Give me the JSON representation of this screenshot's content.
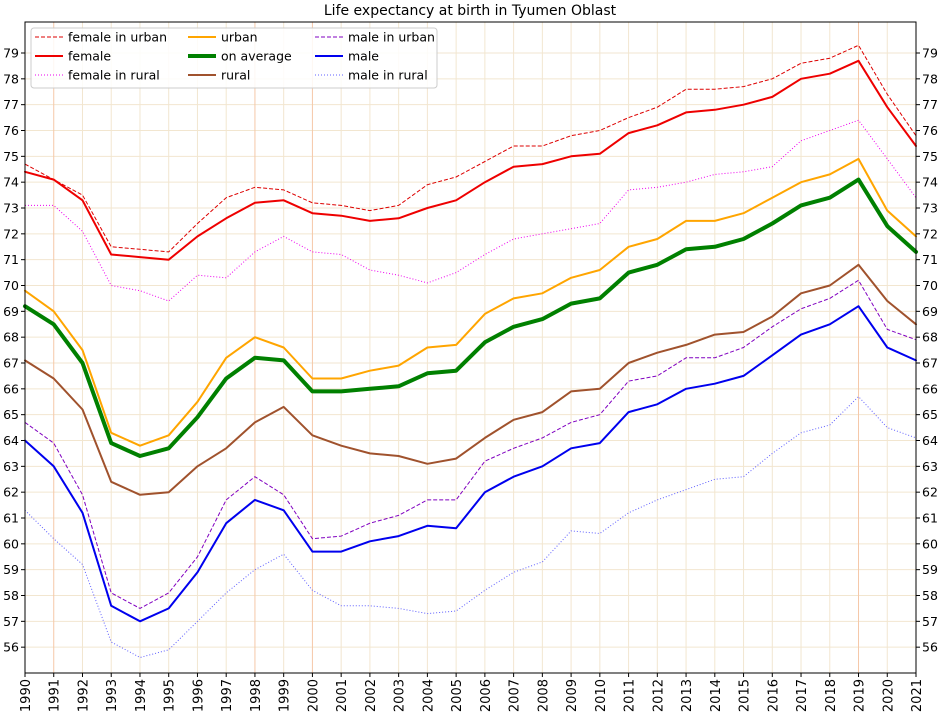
{
  "chart_data": {
    "type": "line",
    "title": "Life expectancy at birth in Tyumen Oblast",
    "xlabel": "",
    "ylabel": "",
    "x": [
      1990,
      1991,
      1992,
      1993,
      1994,
      1995,
      1996,
      1997,
      1998,
      1999,
      2000,
      2001,
      2002,
      2003,
      2004,
      2005,
      2006,
      2007,
      2008,
      2009,
      2010,
      2011,
      2012,
      2013,
      2014,
      2015,
      2016,
      2017,
      2018,
      2019,
      2020,
      2021
    ],
    "xlim": [
      1990,
      2021
    ],
    "ylim": [
      55.0,
      80.2
    ],
    "yticks": [
      56,
      57,
      58,
      59,
      60,
      61,
      62,
      63,
      64,
      65,
      66,
      67,
      68,
      69,
      70,
      71,
      72,
      73,
      74,
      75,
      76,
      77,
      78,
      79
    ],
    "grid": true,
    "legend_position": "top-left",
    "series": [
      {
        "name": "female in urban",
        "color": "#dd0000",
        "width": 1,
        "dash": "dashed",
        "values": [
          74.7,
          74.1,
          73.5,
          71.5,
          71.4,
          71.3,
          72.4,
          73.4,
          73.8,
          73.7,
          73.2,
          73.1,
          72.9,
          73.1,
          73.9,
          74.2,
          74.8,
          75.4,
          75.4,
          75.8,
          76.0,
          76.5,
          76.9,
          77.6,
          77.6,
          77.7,
          78.0,
          78.6,
          78.8,
          79.3,
          77.4,
          75.8
        ]
      },
      {
        "name": "female",
        "color": "#ee0000",
        "width": 2,
        "dash": "solid",
        "values": [
          74.4,
          74.1,
          73.3,
          71.2,
          71.1,
          71.0,
          71.9,
          72.6,
          73.2,
          73.3,
          72.8,
          72.7,
          72.5,
          72.6,
          73.0,
          73.3,
          74.0,
          74.6,
          74.7,
          75.0,
          75.1,
          75.9,
          76.2,
          76.7,
          76.8,
          77.0,
          77.3,
          78.0,
          78.2,
          78.7,
          76.9,
          75.4
        ]
      },
      {
        "name": "female in rural",
        "color": "#ee00ee",
        "width": 1,
        "dash": "dotted",
        "values": [
          73.1,
          73.1,
          72.1,
          70.0,
          69.8,
          69.4,
          70.4,
          70.3,
          71.3,
          71.9,
          71.3,
          71.2,
          70.6,
          70.4,
          70.1,
          70.5,
          71.2,
          71.8,
          72.0,
          72.2,
          72.4,
          73.7,
          73.8,
          74.0,
          74.3,
          74.4,
          74.6,
          75.6,
          76.0,
          76.4,
          74.9,
          73.4
        ]
      },
      {
        "name": "urban",
        "color": "#ffa500",
        "width": 2,
        "dash": "solid",
        "values": [
          69.8,
          69.0,
          67.5,
          64.3,
          63.8,
          64.2,
          65.5,
          67.2,
          68.0,
          67.6,
          66.4,
          66.4,
          66.7,
          66.9,
          67.6,
          67.7,
          68.9,
          69.5,
          69.7,
          70.3,
          70.6,
          71.5,
          71.8,
          72.5,
          72.5,
          72.8,
          73.4,
          74.0,
          74.3,
          74.9,
          72.9,
          71.9
        ]
      },
      {
        "name": "on average",
        "color": "#008000",
        "width": 4,
        "dash": "solid",
        "values": [
          69.2,
          68.5,
          67.0,
          63.9,
          63.4,
          63.7,
          64.9,
          66.4,
          67.2,
          67.1,
          65.9,
          65.9,
          66.0,
          66.1,
          66.6,
          66.7,
          67.8,
          68.4,
          68.7,
          69.3,
          69.5,
          70.5,
          70.8,
          71.4,
          71.5,
          71.8,
          72.4,
          73.1,
          73.4,
          74.1,
          72.3,
          71.3
        ]
      },
      {
        "name": "rural",
        "color": "#a0522d",
        "width": 2,
        "dash": "solid",
        "values": [
          67.1,
          66.4,
          65.2,
          62.4,
          61.9,
          62.0,
          63.0,
          63.7,
          64.7,
          65.3,
          64.2,
          63.8,
          63.5,
          63.4,
          63.1,
          63.3,
          64.1,
          64.8,
          65.1,
          65.9,
          66.0,
          67.0,
          67.4,
          67.7,
          68.1,
          68.2,
          68.8,
          69.7,
          70.0,
          70.8,
          69.4,
          68.5
        ]
      },
      {
        "name": "male in urban",
        "color": "#8000c0",
        "width": 1,
        "dash": "dashed",
        "values": [
          64.7,
          63.9,
          61.9,
          58.1,
          57.5,
          58.1,
          59.5,
          61.7,
          62.6,
          61.9,
          60.2,
          60.3,
          60.8,
          61.1,
          61.7,
          61.7,
          63.2,
          63.7,
          64.1,
          64.7,
          65.0,
          66.3,
          66.5,
          67.2,
          67.2,
          67.6,
          68.4,
          69.1,
          69.5,
          70.2,
          68.3,
          67.9
        ]
      },
      {
        "name": "male",
        "color": "#0000ee",
        "width": 2,
        "dash": "solid",
        "values": [
          64.0,
          63.0,
          61.2,
          57.6,
          57.0,
          57.5,
          58.9,
          60.8,
          61.7,
          61.3,
          59.7,
          59.7,
          60.1,
          60.3,
          60.7,
          60.6,
          62.0,
          62.6,
          63.0,
          63.7,
          63.9,
          65.1,
          65.4,
          66.0,
          66.2,
          66.5,
          67.3,
          68.1,
          68.5,
          69.2,
          67.6,
          67.1
        ]
      },
      {
        "name": "male in rural",
        "color": "#6060ff",
        "width": 1,
        "dash": "dotted",
        "values": [
          61.3,
          60.2,
          59.2,
          56.2,
          55.6,
          55.9,
          57.0,
          58.1,
          59.0,
          59.6,
          58.2,
          57.6,
          57.6,
          57.5,
          57.3,
          57.4,
          58.2,
          58.9,
          59.3,
          60.5,
          60.4,
          61.2,
          61.7,
          62.1,
          62.5,
          62.6,
          63.5,
          64.3,
          64.6,
          65.7,
          64.5,
          64.1
        ]
      }
    ]
  }
}
